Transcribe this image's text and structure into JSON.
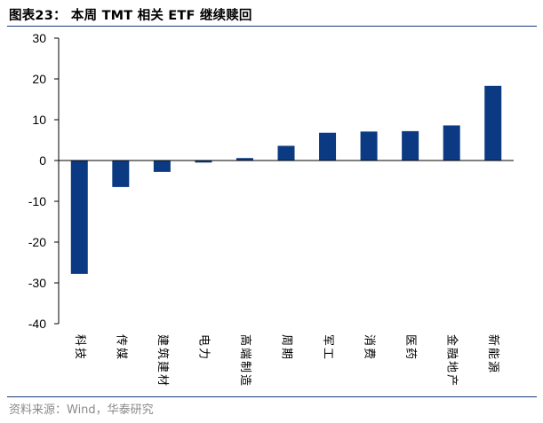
{
  "header": {
    "title": "图表23： 本周 TMT 相关 ETF 继续赎回"
  },
  "footer": {
    "source": "资料来源：Wind，华泰研究"
  },
  "colors": {
    "bar": "#0b3a82",
    "axis": "#000000",
    "rule": "#1a3a7a"
  },
  "chart_data": {
    "type": "bar",
    "title": "本周 TMT 相关 ETF 继续赎回",
    "xlabel": "",
    "ylabel": "",
    "categories": [
      "科技",
      "传媒",
      "建筑建材",
      "电力",
      "高端制造",
      "周期",
      "军工",
      "消费",
      "医药",
      "金融地产",
      "新能源"
    ],
    "values": [
      -27.8,
      -6.5,
      -2.8,
      -0.5,
      0.6,
      3.6,
      6.8,
      7.1,
      7.2,
      8.6,
      18.3
    ],
    "ylim": [
      -40,
      30
    ],
    "yticks": [
      30,
      20,
      10,
      0,
      -10,
      -20,
      -30,
      -40
    ],
    "grid": false,
    "legend": "none"
  }
}
